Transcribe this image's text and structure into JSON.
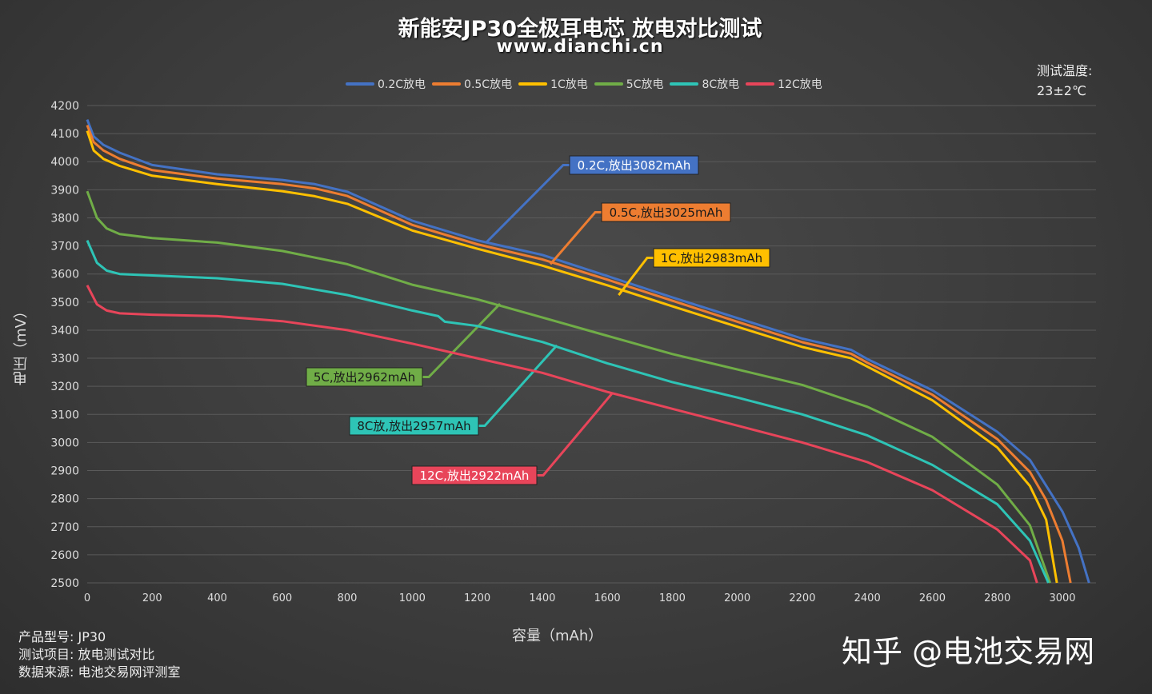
{
  "title": "新能安JP30全极耳电芯 放电对比测试",
  "subtitle": "www.dianchi.cn",
  "temperature": {
    "label": "测试温度:",
    "value": "23±2℃"
  },
  "info": [
    {
      "label": "产品型号:",
      "value": "JP30"
    },
    {
      "label": "测试项目:",
      "value": "放电测试对比"
    },
    {
      "label": "数据来源:",
      "value": "电池交易网评测室"
    }
  ],
  "watermark": "知乎 @电池交易网",
  "chart_data": {
    "type": "line",
    "xlabel": "容量（mAh）",
    "ylabel": "电压（mV）",
    "xlim": [
      0,
      3000
    ],
    "ylim": [
      2500,
      4200
    ],
    "xticks": [
      0,
      200,
      400,
      600,
      800,
      1000,
      1200,
      1400,
      1600,
      1800,
      2000,
      2200,
      2400,
      2600,
      2800,
      3000
    ],
    "yticks": [
      2500,
      2600,
      2700,
      2800,
      2900,
      3000,
      3100,
      3200,
      3300,
      3400,
      3500,
      3600,
      3700,
      3800,
      3900,
      4000,
      4100,
      4200
    ],
    "grid": "horizontal",
    "legend": "top",
    "series": [
      {
        "name": "0.2C放电",
        "color": "#4472c4",
        "annotation": "0.2C,放出3082mAh",
        "anchor": [
          1228,
          3713
        ],
        "label_text_color": "#ffffff",
        "points": [
          [
            0,
            4150
          ],
          [
            20,
            4090
          ],
          [
            50,
            4060
          ],
          [
            100,
            4032
          ],
          [
            200,
            3988
          ],
          [
            400,
            3955
          ],
          [
            600,
            3935
          ],
          [
            700,
            3920
          ],
          [
            800,
            3893
          ],
          [
            1000,
            3790
          ],
          [
            1200,
            3720
          ],
          [
            1400,
            3668
          ],
          [
            1600,
            3593
          ],
          [
            1800,
            3517
          ],
          [
            2000,
            3443
          ],
          [
            2200,
            3370
          ],
          [
            2350,
            3330
          ],
          [
            2400,
            3297
          ],
          [
            2600,
            3186
          ],
          [
            2800,
            3038
          ],
          [
            2900,
            2938
          ],
          [
            3000,
            2754
          ],
          [
            3050,
            2625
          ],
          [
            3082,
            2500
          ]
        ]
      },
      {
        "name": "0.5C放电",
        "color": "#ed7d31",
        "annotation": "0.5C,放出3025mAh",
        "anchor": [
          1425,
          3635
        ],
        "label_text_color": "#1a1a1a",
        "points": [
          [
            0,
            4130
          ],
          [
            20,
            4070
          ],
          [
            50,
            4040
          ],
          [
            100,
            4010
          ],
          [
            200,
            3970
          ],
          [
            400,
            3940
          ],
          [
            600,
            3920
          ],
          [
            700,
            3905
          ],
          [
            800,
            3878
          ],
          [
            1000,
            3775
          ],
          [
            1200,
            3706
          ],
          [
            1400,
            3652
          ],
          [
            1600,
            3580
          ],
          [
            1800,
            3505
          ],
          [
            2000,
            3430
          ],
          [
            2200,
            3357
          ],
          [
            2350,
            3316
          ],
          [
            2400,
            3284
          ],
          [
            2600,
            3170
          ],
          [
            2800,
            3012
          ],
          [
            2900,
            2895
          ],
          [
            2950,
            2795
          ],
          [
            3000,
            2650
          ],
          [
            3025,
            2500
          ]
        ]
      },
      {
        "name": "1C放电",
        "color": "#ffc000",
        "annotation": "1C,放出2983mAh",
        "anchor": [
          1635,
          3525
        ],
        "label_text_color": "#1a1a1a",
        "points": [
          [
            0,
            4110
          ],
          [
            20,
            4040
          ],
          [
            50,
            4010
          ],
          [
            100,
            3985
          ],
          [
            200,
            3950
          ],
          [
            400,
            3920
          ],
          [
            600,
            3895
          ],
          [
            700,
            3877
          ],
          [
            800,
            3850
          ],
          [
            1000,
            3755
          ],
          [
            1200,
            3690
          ],
          [
            1400,
            3630
          ],
          [
            1600,
            3560
          ],
          [
            1800,
            3485
          ],
          [
            2000,
            3412
          ],
          [
            2200,
            3340
          ],
          [
            2350,
            3300
          ],
          [
            2400,
            3270
          ],
          [
            2600,
            3150
          ],
          [
            2800,
            2982
          ],
          [
            2900,
            2845
          ],
          [
            2950,
            2725
          ],
          [
            2983,
            2500
          ]
        ]
      },
      {
        "name": "5C放电",
        "color": "#70ad47",
        "annotation": "5C,放出2962mAh",
        "anchor": [
          1270,
          3494
        ],
        "label_text_color": "#1a1a1a",
        "points": [
          [
            0,
            3895
          ],
          [
            30,
            3800
          ],
          [
            60,
            3762
          ],
          [
            100,
            3742
          ],
          [
            200,
            3728
          ],
          [
            400,
            3712
          ],
          [
            600,
            3682
          ],
          [
            800,
            3635
          ],
          [
            1000,
            3562
          ],
          [
            1200,
            3510
          ],
          [
            1400,
            3445
          ],
          [
            1600,
            3380
          ],
          [
            1800,
            3315
          ],
          [
            2000,
            3260
          ],
          [
            2200,
            3205
          ],
          [
            2400,
            3127
          ],
          [
            2600,
            3020
          ],
          [
            2800,
            2850
          ],
          [
            2900,
            2705
          ],
          [
            2962,
            2500
          ]
        ]
      },
      {
        "name": "8C放电",
        "color": "#2ec4b6",
        "annotation": "8C放,放出2957mAh",
        "anchor": [
          1445,
          3346
        ],
        "label_text_color": "#1a1a1a",
        "points": [
          [
            0,
            3720
          ],
          [
            30,
            3640
          ],
          [
            60,
            3612
          ],
          [
            100,
            3600
          ],
          [
            200,
            3595
          ],
          [
            400,
            3585
          ],
          [
            600,
            3565
          ],
          [
            800,
            3525
          ],
          [
            1000,
            3470
          ],
          [
            1080,
            3450
          ],
          [
            1100,
            3430
          ],
          [
            1200,
            3415
          ],
          [
            1400,
            3358
          ],
          [
            1600,
            3282
          ],
          [
            1800,
            3215
          ],
          [
            2000,
            3160
          ],
          [
            2200,
            3100
          ],
          [
            2400,
            3025
          ],
          [
            2600,
            2920
          ],
          [
            2800,
            2780
          ],
          [
            2900,
            2650
          ],
          [
            2957,
            2500
          ]
        ]
      },
      {
        "name": "12C放电",
        "color": "#e8455a",
        "annotation": "12C,放出2922mAh",
        "anchor": [
          1615,
          3175
        ],
        "label_text_color": "#ffffff",
        "points": [
          [
            0,
            3560
          ],
          [
            30,
            3492
          ],
          [
            60,
            3470
          ],
          [
            100,
            3460
          ],
          [
            200,
            3455
          ],
          [
            400,
            3450
          ],
          [
            600,
            3432
          ],
          [
            800,
            3400
          ],
          [
            1000,
            3352
          ],
          [
            1200,
            3300
          ],
          [
            1400,
            3248
          ],
          [
            1600,
            3180
          ],
          [
            1800,
            3120
          ],
          [
            2000,
            3060
          ],
          [
            2200,
            3000
          ],
          [
            2400,
            2930
          ],
          [
            2600,
            2830
          ],
          [
            2800,
            2690
          ],
          [
            2900,
            2580
          ],
          [
            2922,
            2500
          ]
        ]
      }
    ]
  }
}
